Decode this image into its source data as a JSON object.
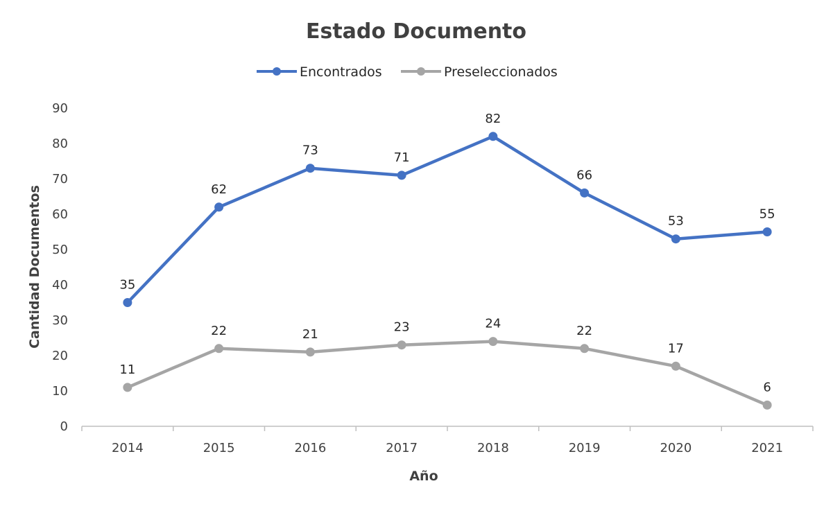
{
  "chart_data": {
    "type": "line",
    "title": "Estado Documento",
    "xlabel": "Año",
    "ylabel": "Cantidad Documentos",
    "categories": [
      "2014",
      "2015",
      "2016",
      "2017",
      "2018",
      "2019",
      "2020",
      "2021"
    ],
    "ylim": [
      0,
      90
    ],
    "yticks": [
      "0",
      "10",
      "20",
      "30",
      "40",
      "50",
      "60",
      "70",
      "80",
      "90"
    ],
    "grid": false,
    "legend": "top-center",
    "series": [
      {
        "name": "Encontrados",
        "color": "#4472C4",
        "values": [
          35,
          62,
          73,
          71,
          82,
          66,
          53,
          55
        ]
      },
      {
        "name": "Preseleccionados",
        "color": "#A5A5A5",
        "values": [
          11,
          22,
          21,
          23,
          24,
          22,
          17,
          6
        ]
      }
    ]
  }
}
